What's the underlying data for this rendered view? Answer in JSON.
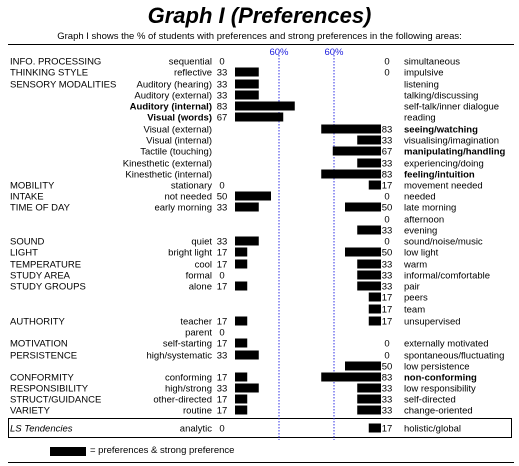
{
  "title": "Graph I (Preferences)",
  "subtitle": "Graph I shows the % of students with preferences and strong preferences in the following areas:",
  "legend": "= preferences & strong preference",
  "reference_label": "60%",
  "colors": {
    "bar": "#000000",
    "reference_line": "#2f2fe6"
  },
  "chart_data": {
    "type": "bar",
    "orientation": "horizontal",
    "scale_max": 100,
    "reference_value": 60,
    "rows": [
      {
        "area": "INFO. PROCESSING",
        "left_label": "sequential",
        "left_value": 0,
        "right_value": 0,
        "right_label": "simultaneous"
      },
      {
        "area": "THINKING STYLE",
        "left_label": "reflective",
        "left_value": 33,
        "right_value": 0,
        "right_label": "impulsive"
      },
      {
        "area": "SENSORY MODALITIES",
        "left_label": "Auditory (hearing)",
        "left_value": 33,
        "right_label": "listening"
      },
      {
        "left_label": "Auditory (external)",
        "left_value": 33,
        "right_label": "talking/discussing"
      },
      {
        "left_label": "Auditory (internal)",
        "left_value": 83,
        "left_bold": true,
        "right_label": "self-talk/inner dialogue"
      },
      {
        "left_label": "Visual (words)",
        "left_value": 67,
        "left_bold": true,
        "right_label": "reading"
      },
      {
        "left_label": "Visual (external)",
        "right_value": 83,
        "right_label": "seeing/watching",
        "right_bold": true
      },
      {
        "left_label": "Visual (internal)",
        "right_value": 33,
        "right_label": "visualising/imagination"
      },
      {
        "left_label": "Tactile (touching)",
        "right_value": 67,
        "right_label": "manipulating/handling",
        "right_bold": true
      },
      {
        "left_label": "Kinesthetic (external)",
        "right_value": 33,
        "right_label": "experiencing/doing"
      },
      {
        "left_label": "Kinesthetic (internal)",
        "right_value": 83,
        "right_label": "feeling/intuition",
        "right_bold": true
      },
      {
        "area": "MOBILITY",
        "left_label": "stationary",
        "left_value": 0,
        "right_value": 17,
        "right_label": "movement needed"
      },
      {
        "area": "INTAKE",
        "left_label": "not needed",
        "left_value": 50,
        "right_value": 0,
        "right_label": "needed"
      },
      {
        "area": "TIME OF DAY",
        "left_label": "early morning",
        "left_value": 33,
        "right_value": 50,
        "right_label": "late morning"
      },
      {
        "right_value": 0,
        "right_label": "afternoon"
      },
      {
        "right_value": 33,
        "right_label": "evening"
      },
      {
        "area": "SOUND",
        "left_label": "quiet",
        "left_value": 33,
        "right_value": 0,
        "right_label": "sound/noise/music"
      },
      {
        "area": "LIGHT",
        "left_label": "bright light",
        "left_value": 17,
        "right_value": 50,
        "right_label": "low light"
      },
      {
        "area": "TEMPERATURE",
        "left_label": "cool",
        "left_value": 17,
        "right_value": 33,
        "right_label": "warm"
      },
      {
        "area": "STUDY AREA",
        "left_label": "formal",
        "left_value": 0,
        "right_value": 33,
        "right_label": "informal/comfortable"
      },
      {
        "area": "STUDY GROUPS",
        "left_label": "alone",
        "left_value": 17,
        "right_value": 33,
        "right_label": "pair"
      },
      {
        "right_value": 17,
        "right_label": "peers"
      },
      {
        "right_value": 17,
        "right_label": "team"
      },
      {
        "area": "AUTHORITY",
        "left_label": "teacher",
        "left_value": 17,
        "right_value": 17,
        "right_label": "unsupervised"
      },
      {
        "left_label": "parent",
        "left_value": 0
      },
      {
        "area": "MOTIVATION",
        "left_label": "self-starting",
        "left_value": 17,
        "right_value": 0,
        "right_label": "externally motivated"
      },
      {
        "area": "PERSISTENCE",
        "left_label": "high/systematic",
        "left_value": 33,
        "right_value": 0,
        "right_label": "spontaneous/fluctuating"
      },
      {
        "right_value": 50,
        "right_label": "low persistence"
      },
      {
        "area": "CONFORMITY",
        "left_label": "conforming",
        "left_value": 17,
        "right_value": 83,
        "right_label": "non-conforming",
        "right_bold": true
      },
      {
        "area": "RESPONSIBILITY",
        "left_label": "high/strong",
        "left_value": 33,
        "right_value": 33,
        "right_label": "low responsibility"
      },
      {
        "area": "STRUCT/GUIDANCE",
        "left_label": "other-directed",
        "left_value": 17,
        "right_value": 33,
        "right_label": "self-directed"
      },
      {
        "area": "VARIETY",
        "left_label": "routine",
        "left_value": 17,
        "right_value": 33,
        "right_label": "change-oriented"
      },
      {
        "area": "LS Tendencies",
        "area_italic": true,
        "left_label": "analytic",
        "left_value": 0,
        "right_value": 17,
        "right_label": "holistic/global"
      }
    ]
  }
}
